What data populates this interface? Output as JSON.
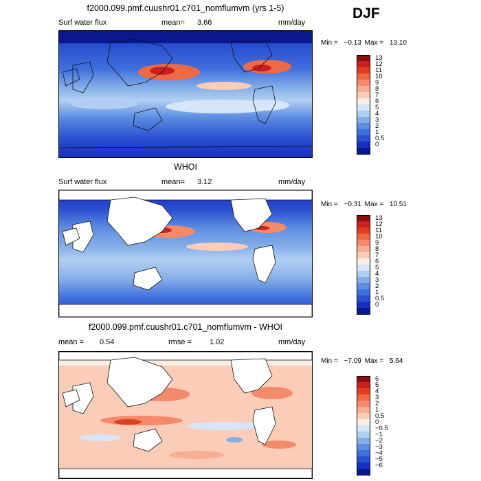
{
  "season": "DJF",
  "panels": [
    {
      "id": "model",
      "title": "f2000.099.pmf.cuushr01.c701_nomflumvm (yrs 1-5)",
      "left_label": "Surf water flux",
      "stat_label": "mean=",
      "stat_value": "3.66",
      "stat2_label": "",
      "stat2_value": "",
      "units": "mm/day",
      "min_label": "Min =",
      "min_value": "−0.13",
      "max_label": "Max =",
      "max_value": "13.10",
      "land_masked": false,
      "colorbar": {
        "ticks": [
          "13",
          "12",
          "11",
          "10",
          "9",
          "8",
          "7",
          "6",
          "5",
          "4",
          "3",
          "2",
          "1",
          "0.5",
          "0"
        ],
        "colors": [
          "#8b0d0d",
          "#cc1f1f",
          "#e0401f",
          "#ee6a45",
          "#f48a6a",
          "#f8ae93",
          "#fbcdb8",
          "#fdeee3",
          "#d6e6f8",
          "#b2cff2",
          "#86afe9",
          "#5e8ee2",
          "#3f6fdc",
          "#2a4fd0",
          "#1830c0",
          "#0a1890"
        ]
      }
    },
    {
      "id": "obs",
      "title": "WHOI",
      "left_label": "Surf water flux",
      "stat_label": "mean=",
      "stat_value": "3.12",
      "stat2_label": "",
      "stat2_value": "",
      "units": "mm/day",
      "min_label": "Min =",
      "min_value": "−0.31",
      "max_label": "Max =",
      "max_value": "10.51",
      "land_masked": true,
      "colorbar": {
        "ticks": [
          "13",
          "12",
          "11",
          "10",
          "9",
          "8",
          "7",
          "6",
          "5",
          "4",
          "3",
          "2",
          "1",
          "0.5",
          "0"
        ],
        "colors": [
          "#8b0d0d",
          "#cc1f1f",
          "#e0401f",
          "#ee6a45",
          "#f48a6a",
          "#f8ae93",
          "#fbcdb8",
          "#fdeee3",
          "#d6e6f8",
          "#b2cff2",
          "#86afe9",
          "#5e8ee2",
          "#3f6fdc",
          "#2a4fd0",
          "#1830c0",
          "#0a1890"
        ]
      }
    },
    {
      "id": "diff",
      "title": "f2000.099.pmf.cuushr01.c701_nomflumvm - WHOI",
      "left_label": "",
      "stat_label": "mean =",
      "stat_value": "0.54",
      "stat2_label": "rmse =",
      "stat2_value": "1.02",
      "units": "mm/day",
      "min_label": "Min =",
      "min_value": "−7.09",
      "max_label": "Max =",
      "max_value": "5.64",
      "land_masked": true,
      "colorbar": {
        "ticks": [
          "6",
          "5",
          "4",
          "3",
          "2",
          "1",
          "0.5",
          "0",
          "−0.5",
          "−1",
          "−2",
          "−3",
          "−4",
          "−5",
          "−6"
        ],
        "colors": [
          "#8b0d0d",
          "#cc1f1f",
          "#e0401f",
          "#ee6a45",
          "#f48a6a",
          "#f8ae93",
          "#fbcdb8",
          "#fdeee3",
          "#d6e6f8",
          "#b2cff2",
          "#86afe9",
          "#5e8ee2",
          "#3f6fdc",
          "#2a4fd0",
          "#1830c0",
          "#0a1890"
        ]
      }
    }
  ],
  "chart_data": {
    "type": "heatmap",
    "title": "Surface water flux (DJF)",
    "units": "mm/day",
    "series": [
      {
        "name": "f2000.099.pmf.cuushr01.c701_nomflumvm (yrs 1-5)",
        "mean": 3.66,
        "min": -0.13,
        "max": 13.1
      },
      {
        "name": "WHOI",
        "mean": 3.12,
        "min": -0.31,
        "max": 10.51
      },
      {
        "name": "f2000.099.pmf.cuushr01.c701_nomflumvm - WHOI",
        "mean": 0.54,
        "rmse": 1.02,
        "min": -7.09,
        "max": 5.64
      }
    ],
    "contour_levels_abs": [
      0,
      0.5,
      1,
      2,
      3,
      4,
      5,
      6,
      7,
      8,
      9,
      10,
      11,
      12,
      13
    ],
    "contour_levels_diff": [
      -6,
      -5,
      -4,
      -3,
      -2,
      -1,
      -0.5,
      0,
      0.5,
      1,
      2,
      3,
      4,
      5,
      6
    ]
  }
}
